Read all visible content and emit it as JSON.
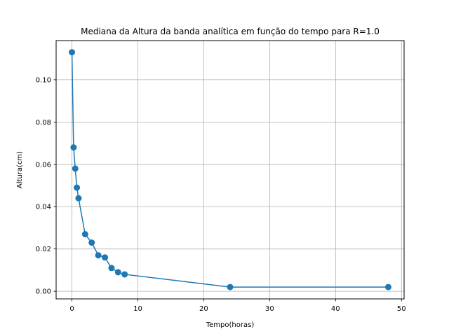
{
  "chart_data": {
    "type": "line",
    "title": "Mediana da Altura da banda analítica em função do tempo para R=1.0",
    "xlabel": "Tempo(horas)",
    "ylabel": "Altura(cm)",
    "xlim": [
      -2.4,
      50.4
    ],
    "ylim": [
      -0.0036,
      0.1185
    ],
    "xticks": [
      0,
      10,
      20,
      30,
      40,
      50
    ],
    "yticks": [
      0.0,
      0.02,
      0.04,
      0.06,
      0.08,
      0.1
    ],
    "xtick_labels": [
      "0",
      "10",
      "20",
      "30",
      "40",
      "50"
    ],
    "ytick_labels": [
      "0.00",
      "0.02",
      "0.04",
      "0.06",
      "0.08",
      "0.10"
    ],
    "grid": true,
    "color": "#1f77b4",
    "series": [
      {
        "x": [
          0,
          0.25,
          0.5,
          0.75,
          1,
          2,
          3,
          4,
          5,
          6,
          7,
          8,
          24,
          48
        ],
        "y": [
          0.113,
          0.068,
          0.058,
          0.049,
          0.044,
          0.027,
          0.023,
          0.017,
          0.016,
          0.011,
          0.009,
          0.008,
          0.002,
          0.002
        ]
      }
    ]
  }
}
